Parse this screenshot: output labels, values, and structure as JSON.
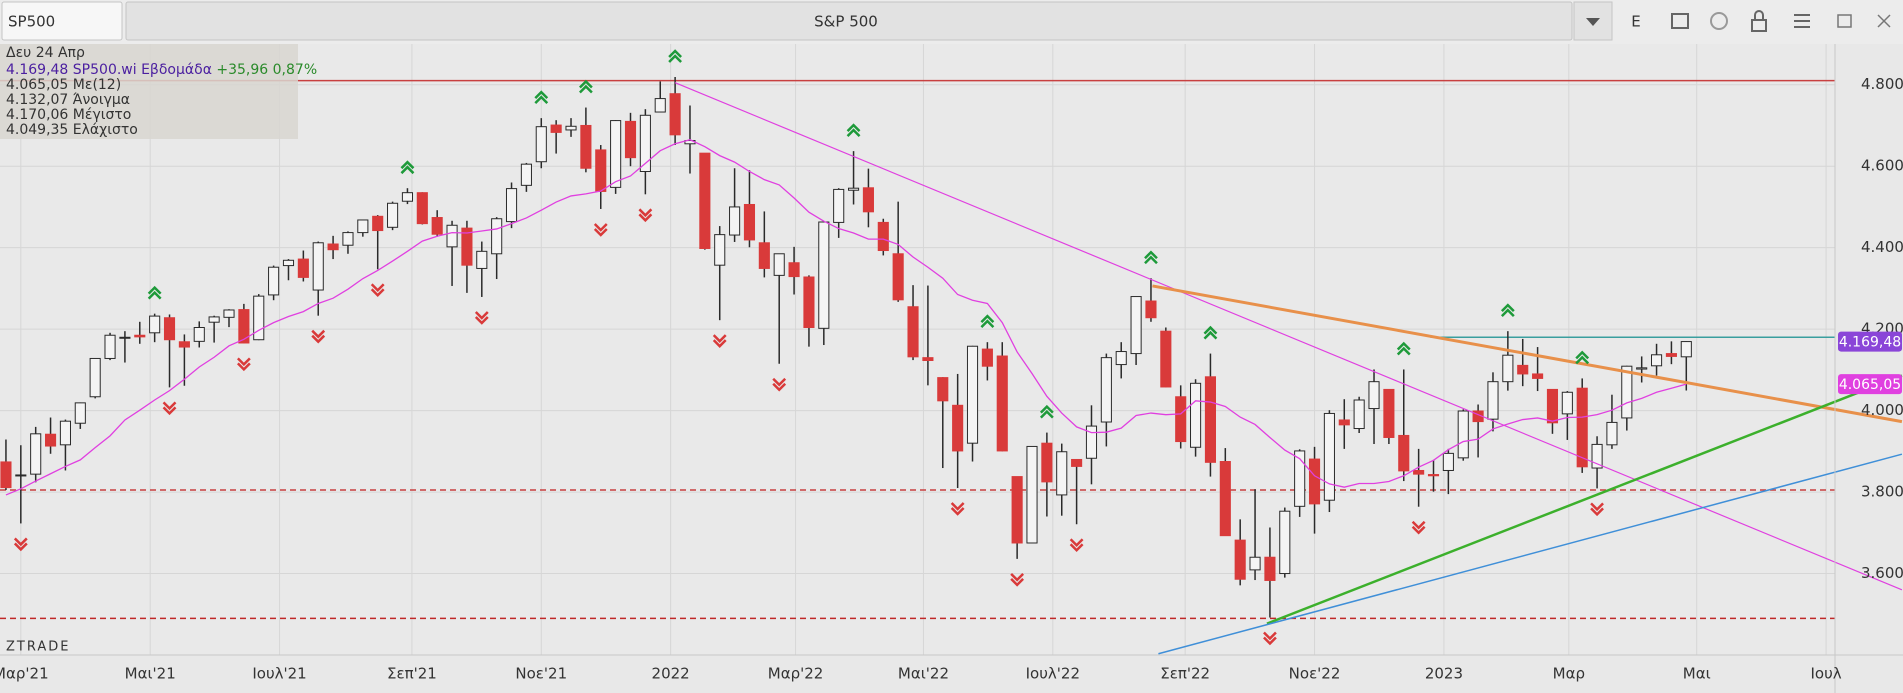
{
  "toolbar": {
    "symbol": "SP500",
    "title": "S&P 500",
    "mode": "E"
  },
  "chart_data": {
    "type": "candlestick",
    "info": {
      "date": "Δευ 24 Απρ",
      "quote": "4.169,48 SP500.wi Εβδομάδα",
      "change": "+35,96 0,87%",
      "ma": "4.065,05 Με(12)",
      "open": "4.132,07 Άνοιγμα",
      "high": "4.170,06 Μέγιστο",
      "low": "4.049,35 Ελάχιστο"
    },
    "watermark": "ZTRADE",
    "x": [
      0,
      1,
      2,
      3,
      4,
      5,
      6,
      7,
      8,
      9,
      10,
      11,
      12,
      13,
      14,
      15,
      16,
      17,
      18,
      19,
      20,
      21,
      22,
      23,
      24,
      25,
      26,
      27,
      28,
      29,
      30,
      31,
      32,
      33,
      34,
      35,
      36,
      37,
      38,
      39,
      40,
      41,
      42,
      43,
      44,
      45,
      46,
      47,
      48,
      49,
      50,
      51,
      52,
      53,
      54,
      55,
      56,
      57,
      58,
      59,
      60,
      61,
      62,
      63,
      64,
      65,
      66,
      67,
      68,
      69,
      70,
      71,
      72,
      73,
      74,
      75,
      76,
      77,
      78,
      79,
      80,
      81,
      82,
      83,
      84,
      85,
      86,
      87,
      88,
      89,
      90,
      91,
      92,
      93,
      94,
      95,
      96,
      97,
      98,
      99,
      100,
      101,
      102,
      103,
      104,
      105,
      106,
      107,
      108,
      109,
      110,
      111,
      112,
      113
    ],
    "open": [
      3874,
      3842,
      3844,
      3942,
      3916,
      3969,
      4034,
      4128,
      4179,
      4185,
      4191,
      4228,
      4169,
      4170,
      4217,
      4229,
      4248,
      4174,
      4284,
      4356,
      4372,
      4296,
      4409,
      4406,
      4437,
      4477,
      4450,
      4514,
      4535,
      4474,
      4402,
      4448,
      4349,
      4385,
      4464,
      4553,
      4611,
      4701,
      4689,
      4700,
      4640,
      4548,
      4710,
      4587,
      4733,
      4778,
      4655,
      4632,
      4357,
      4431,
      4506,
      4412,
      4332,
      4363,
      4328,
      4202,
      4462,
      4541,
      4547,
      4462,
      4385,
      4255,
      4130,
      4081,
      4013,
      3920,
      4151,
      4134,
      3838,
      3675,
      3920,
      3793,
      3880,
      3883,
      3972,
      4113,
      4140,
      4269,
      4195,
      4034,
      3910,
      4083,
      3875,
      3682,
      3609,
      3640,
      3600,
      3765,
      3881,
      3780,
      3977,
      3956,
      4005,
      4052,
      3939,
      3853,
      3843,
      3853,
      3884,
      3999,
      3979,
      4071,
      4111,
      4090,
      4052,
      3992,
      4055,
      3859,
      3916,
      3982,
      4102,
      4110,
      4140,
      4132.07
    ],
    "high": [
      3929,
      3915,
      3960,
      3983,
      3978,
      4020,
      4129,
      4191,
      4195,
      4218,
      4238,
      4236,
      4187,
      4219,
      4233,
      4249,
      4262,
      4286,
      4356,
      4372,
      4393,
      4415,
      4429,
      4440,
      4468,
      4480,
      4513,
      4546,
      4536,
      4492,
      4466,
      4466,
      4415,
      4475,
      4560,
      4608,
      4718,
      4713,
      4718,
      4744,
      4652,
      4713,
      4731,
      4740,
      4808,
      4819,
      4749,
      4632,
      4453,
      4595,
      4590,
      4489,
      4385,
      4402,
      4332,
      4465,
      4546,
      4637,
      4594,
      4471,
      4513,
      4308,
      4307,
      4082,
      4090,
      4159,
      4168,
      4168,
      3838,
      3913,
      3946,
      3919,
      3880,
      4013,
      4140,
      4168,
      4280,
      4325,
      4204,
      4062,
      4077,
      4140,
      3908,
      3733,
      3807,
      3713,
      3762,
      3905,
      3911,
      4001,
      4028,
      4034,
      4101,
      4052,
      4101,
      3906,
      3879,
      3906,
      4003,
      4015,
      4094,
      4195,
      4176,
      4156,
      4052,
      4048,
      4079,
      3937,
      4039,
      4110,
      4133,
      4164,
      4170,
      4170.06
    ],
    "low": [
      3805,
      3723,
      3824,
      3894,
      3853,
      3955,
      4030,
      4124,
      4118,
      4164,
      4168,
      4057,
      4061,
      4155,
      4167,
      4205,
      4165,
      4173,
      4271,
      4320,
      4317,
      4233,
      4372,
      4385,
      4427,
      4347,
      4443,
      4507,
      4457,
      4427,
      4306,
      4289,
      4279,
      4323,
      4448,
      4537,
      4595,
      4631,
      4672,
      4585,
      4495,
      4532,
      4600,
      4531,
      4733,
      4652,
      4582,
      4395,
      4222,
      4414,
      4401,
      4327,
      4115,
      4285,
      4157,
      4161,
      4424,
      4506,
      4450,
      4381,
      4267,
      4124,
      4062,
      3859,
      3810,
      3875,
      4074,
      3900,
      3636,
      3675,
      3740,
      3742,
      3721,
      3819,
      3912,
      4079,
      4112,
      4218,
      4057,
      3907,
      3887,
      3838,
      3694,
      3571,
      3584,
      3492,
      3590,
      3739,
      3698,
      3751,
      3906,
      3945,
      3918,
      3918,
      3827,
      3764,
      3801,
      3795,
      3877,
      3885,
      3949,
      4049,
      4060,
      4048,
      3943,
      3928,
      3847,
      3809,
      3906,
      3951,
      4069,
      4086,
      4114,
      4049.35
    ],
    "close": [
      3811,
      3842,
      3943,
      3913,
      3974,
      4019,
      4128,
      4185,
      4180,
      4181,
      4232,
      4174,
      4156,
      4204,
      4230,
      4247,
      4166,
      4281,
      4352,
      4369,
      4327,
      4412,
      4395,
      4437,
      4468,
      4442,
      4509,
      4535,
      4459,
      4433,
      4455,
      4357,
      4391,
      4471,
      4545,
      4605,
      4697,
      4683,
      4698,
      4595,
      4538,
      4712,
      4621,
      4725,
      4766,
      4677,
      4663,
      4398,
      4432,
      4500,
      4419,
      4349,
      4385,
      4329,
      4204,
      4463,
      4543,
      4546,
      4488,
      4393,
      4272,
      4132,
      4123,
      4024,
      3901,
      4158,
      4109,
      3901,
      3675,
      3912,
      3825,
      3899,
      3863,
      3962,
      4130,
      4145,
      4280,
      4228,
      4058,
      3924,
      4067,
      3873,
      3693,
      3586,
      3640,
      3583,
      3753,
      3901,
      3771,
      3993,
      3965,
      4026,
      4071,
      3934,
      3852,
      3844,
      3840,
      3895,
      3999,
      3973,
      4071,
      4136,
      4090,
      4079,
      3970,
      4045,
      3862,
      3917,
      3971,
      4109,
      4105,
      4137,
      4133,
      4169.48
    ],
    "close_label": "4.169,48",
    "ma_values": [
      3793,
      3808,
      3827,
      3845,
      3863,
      3879,
      3909,
      3938,
      3977,
      4001,
      4026,
      4049,
      4077,
      4107,
      4131,
      4159,
      4175,
      4197,
      4216,
      4231,
      4243,
      4263,
      4276,
      4298,
      4324,
      4344,
      4367,
      4391,
      4416,
      4428,
      4437,
      4436,
      4441,
      4446,
      4459,
      4473,
      4492,
      4512,
      4527,
      4532,
      4539,
      4562,
      4576,
      4607,
      4638,
      4655,
      4665,
      4648,
      4626,
      4610,
      4587,
      4567,
      4554,
      4522,
      4487,
      4465,
      4447,
      4436,
      4421,
      4421,
      4408,
      4377,
      4352,
      4325,
      4285,
      4271,
      4263,
      4216,
      4144,
      4091,
      4035,
      3994,
      3960,
      3946,
      3947,
      3957,
      3988,
      3994,
      3990,
      3992,
      4024,
      4021,
      4010,
      3984,
      3966,
      3934,
      3903,
      3882,
      3840,
      3820,
      3812,
      3821,
      3821,
      3826,
      3840,
      3861,
      3878,
      3904,
      3924,
      3930,
      3955,
      3967,
      3978,
      3982,
      3974,
      3983,
      3984,
      3990,
      4001,
      4019,
      4030,
      4045,
      4055,
      4065.05
    ],
    "ma_label": "4.065,05",
    "colors": {
      "up": "#f4f4f4",
      "down": "#d93a3a",
      "outline": "#2a2a2a",
      "ma": "#e040e0",
      "close_label": "#8a45d8",
      "swing_high": "#1e9a3a",
      "swing_low": "#d93a3a"
    },
    "swing_highs": [
      10,
      27,
      36,
      39,
      45,
      57,
      66,
      70,
      77,
      81,
      94,
      101,
      106
    ],
    "swing_lows": [
      1,
      11,
      16,
      21,
      25,
      32,
      40,
      43,
      48,
      52,
      64,
      68,
      72,
      85,
      95,
      107
    ],
    "levels": [
      {
        "value": 4810,
        "color": "#c84040",
        "dash": false
      },
      {
        "value": 3805,
        "color": "#c84040",
        "dash": true
      },
      {
        "value": 3490,
        "color": "#c02828",
        "dash": true
      },
      {
        "value": 4180,
        "from": 95.8,
        "color": "#3a9f9f",
        "dash": false
      }
    ],
    "lines": [
      {
        "x": [
          45.0,
          127.5
        ],
        "y": [
          4805,
          3560
        ],
        "color": "#e040e0",
        "width": 1.2
      },
      {
        "x": [
          77.1,
          127.5
        ],
        "y": [
          4306,
          3973
        ],
        "color": "#e8904a",
        "width": 3
      },
      {
        "x": [
          84.8,
          127.5
        ],
        "y": [
          3477,
          4086
        ],
        "color": "#3cb02c",
        "width": 2.5
      },
      {
        "x": [
          77.5,
          127.5
        ],
        "y": [
          3403,
          3893
        ],
        "color": "#3f8fd8",
        "width": 1.5
      }
    ],
    "xlim": [
      -0.4,
      123
    ],
    "xticks": [
      {
        "value": 1,
        "label": "Μαρ'21"
      },
      {
        "value": 9.7,
        "label": "Μαι'21"
      },
      {
        "value": 18.4,
        "label": "Ιουλ'21"
      },
      {
        "value": 27.3,
        "label": "Σεπ'21"
      },
      {
        "value": 36,
        "label": "Νοε'21"
      },
      {
        "value": 44.7,
        "label": "2022"
      },
      {
        "value": 53.1,
        "label": "Μαρ'22"
      },
      {
        "value": 61.7,
        "label": "Μαι'22"
      },
      {
        "value": 70.4,
        "label": "Ιουλ'22"
      },
      {
        "value": 79.3,
        "label": "Σεπ'22"
      },
      {
        "value": 88,
        "label": "Νοε'22"
      },
      {
        "value": 96.7,
        "label": "2023"
      },
      {
        "value": 105.1,
        "label": "Μαρ"
      },
      {
        "value": 113.7,
        "label": "Μαι"
      },
      {
        "value": 122.4,
        "label": "Ιουλ"
      }
    ],
    "ylim": [
      3400,
      4900
    ],
    "yticks": [
      {
        "value": 3600,
        "label": "3.600"
      },
      {
        "value": 3800,
        "label": "3.800"
      },
      {
        "value": 4000,
        "label": "4.000"
      },
      {
        "value": 4200,
        "label": "4.200"
      },
      {
        "value": 4400,
        "label": "4.400"
      },
      {
        "value": 4600,
        "label": "4.600"
      },
      {
        "value": 4800,
        "label": "4.800"
      }
    ],
    "grid": true
  }
}
